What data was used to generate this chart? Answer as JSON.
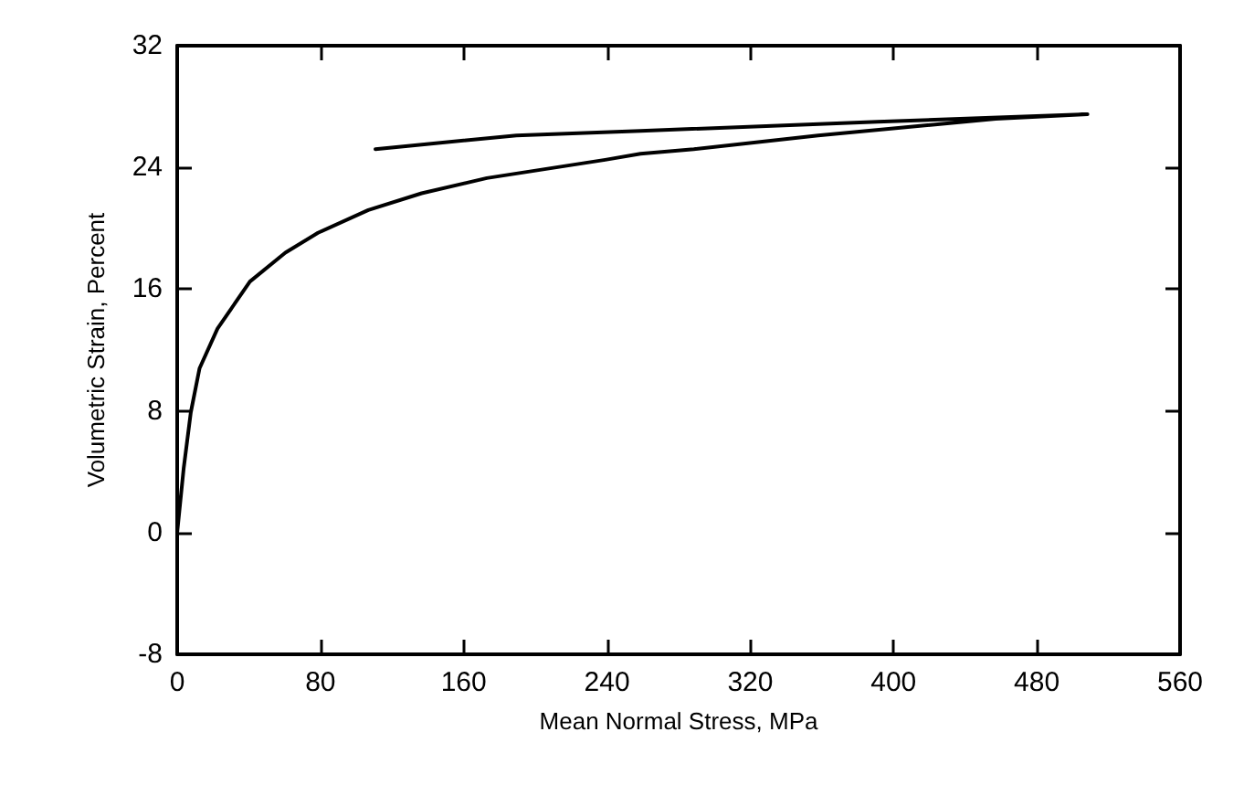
{
  "chart_data": {
    "type": "line",
    "xlabel": "Mean Normal Stress, MPa",
    "ylabel": "Volumetric Strain, Percent",
    "xlim": [
      0,
      560
    ],
    "xticks": [
      0,
      80,
      160,
      240,
      320,
      400,
      480,
      560
    ],
    "ylim": [
      -8,
      32
    ],
    "yticks": [
      -8,
      0,
      8,
      16,
      24,
      32
    ],
    "grid": false,
    "marker": "none",
    "line_style": "solid",
    "series": [
      {
        "color": "#000000",
        "x": [
          0,
          3.6,
          7.6,
          12.5,
          22.5,
          40.6,
          60.4,
          78.6,
          106.7,
          136.5,
          172.9,
          239,
          258.7,
          288.5,
          357.9,
          457,
          508.3,
          391,
          258.7,
          189.4,
          110.7
        ],
        "values": [
          0,
          4.2,
          7.9,
          10.8,
          13.4,
          16.5,
          18.4,
          19.7,
          21.2,
          22.3,
          23.3,
          24.5,
          24.9,
          25.2,
          26.1,
          27.2,
          27.5,
          27.0,
          26.4,
          26.1,
          25.2
        ]
      }
    ]
  }
}
